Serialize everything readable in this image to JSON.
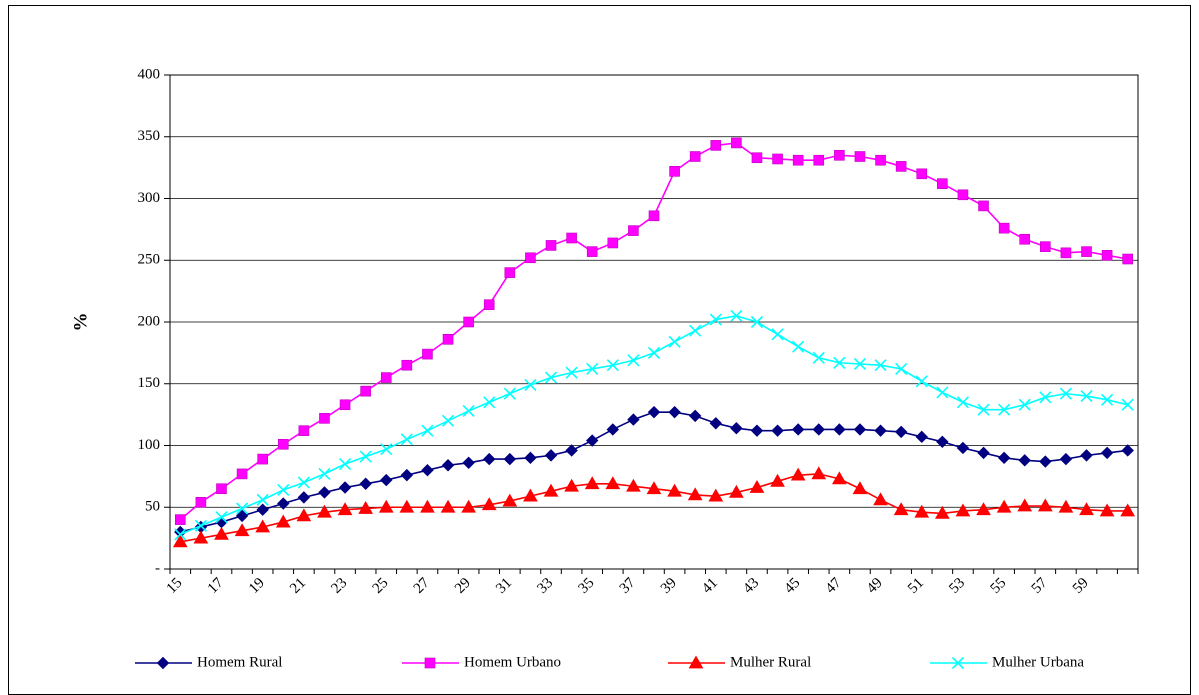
{
  "chart_data": {
    "type": "line",
    "title": "",
    "xlabel": "",
    "ylabel": "%",
    "ylim": [
      0,
      400
    ],
    "yticks": [
      "-",
      "50",
      "100",
      "150",
      "200",
      "250",
      "300",
      "350",
      "400"
    ],
    "xticks": [
      "15",
      "17",
      "19",
      "21",
      "23",
      "25",
      "27",
      "29",
      "31",
      "33",
      "35",
      "37",
      "39",
      "41",
      "43",
      "45",
      "47",
      "49",
      "51",
      "53",
      "55",
      "57",
      "59"
    ],
    "x": [
      15,
      16,
      17,
      18,
      19,
      20,
      21,
      22,
      23,
      24,
      25,
      26,
      27,
      28,
      29,
      30,
      31,
      32,
      33,
      34,
      35,
      36,
      37,
      38,
      39,
      40,
      41,
      42,
      43,
      44,
      45,
      46,
      47,
      48,
      49,
      50,
      51,
      52,
      53,
      54,
      55,
      56,
      57,
      58,
      59,
      60,
      61
    ],
    "grid": "horizontal",
    "legend_position": "bottom",
    "series": [
      {
        "name": "Homem Rural",
        "color": "#000080",
        "marker": "diamond",
        "values": [
          30,
          34,
          38,
          43,
          48,
          53,
          58,
          62,
          66,
          69,
          72,
          76,
          80,
          84,
          86,
          89,
          89,
          90,
          92,
          96,
          104,
          113,
          121,
          127,
          127,
          124,
          118,
          114,
          112,
          112,
          113,
          113,
          113,
          113,
          112,
          111,
          107,
          103,
          98,
          94,
          90,
          88,
          87,
          89,
          92,
          94,
          96
        ]
      },
      {
        "name": "Homem Urbano",
        "color": "#ff00ff",
        "marker": "square",
        "values": [
          40,
          54,
          65,
          77,
          89,
          101,
          112,
          122,
          133,
          144,
          155,
          165,
          174,
          186,
          200,
          214,
          240,
          252,
          262,
          268,
          257,
          264,
          274,
          286,
          322,
          334,
          343,
          345,
          333,
          332,
          331,
          331,
          335,
          334,
          331,
          326,
          320,
          312,
          303,
          294,
          276,
          267,
          261,
          256,
          257,
          254,
          251
        ]
      },
      {
        "name": "Mulher Rural",
        "color": "#ff0000",
        "marker": "triangle",
        "values": [
          22,
          25,
          28,
          31,
          34,
          38,
          43,
          46,
          48,
          49,
          50,
          50,
          50,
          50,
          50,
          52,
          55,
          59,
          63,
          67,
          69,
          69,
          67,
          65,
          63,
          60,
          59,
          62,
          66,
          71,
          76,
          77,
          73,
          65,
          56,
          48,
          46,
          45,
          47,
          48,
          50,
          51,
          51,
          50,
          48,
          47,
          47
        ]
      },
      {
        "name": "Mulher Urbana",
        "color": "#00ffff",
        "marker": "x",
        "values": [
          28,
          35,
          42,
          49,
          56,
          64,
          70,
          77,
          85,
          91,
          97,
          105,
          112,
          120,
          128,
          135,
          142,
          149,
          155,
          159,
          162,
          165,
          169,
          175,
          184,
          193,
          202,
          205,
          200,
          190,
          180,
          171,
          167,
          166,
          165,
          162,
          152,
          143,
          135,
          129,
          129,
          133,
          139,
          142,
          140,
          137,
          133
        ]
      }
    ]
  }
}
